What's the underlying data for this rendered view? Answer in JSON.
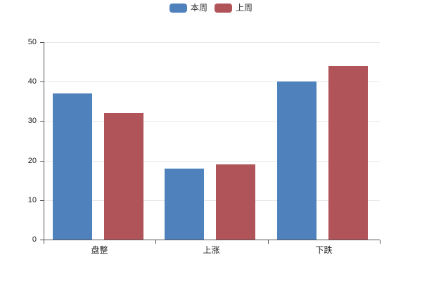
{
  "chart_data": {
    "type": "bar",
    "title": "",
    "xlabel": "",
    "ylabel": "",
    "categories": [
      "盘整",
      "上涨",
      "下跌"
    ],
    "series": [
      {
        "name": "本周",
        "color": "#4f81bd",
        "values": [
          37,
          18,
          40
        ]
      },
      {
        "name": "上周",
        "color": "#b0545a",
        "values": [
          32,
          19,
          44
        ]
      }
    ],
    "ylim": [
      0,
      50
    ],
    "yticks": [
      0,
      10,
      20,
      30,
      40,
      50
    ],
    "grid": true,
    "legend_position": "top"
  },
  "colors": {
    "axis": "#555555",
    "gridline": "#e8e8e8",
    "label_text": "#222222",
    "series_blue": "#4f81bd",
    "series_red": "#b0545a"
  }
}
